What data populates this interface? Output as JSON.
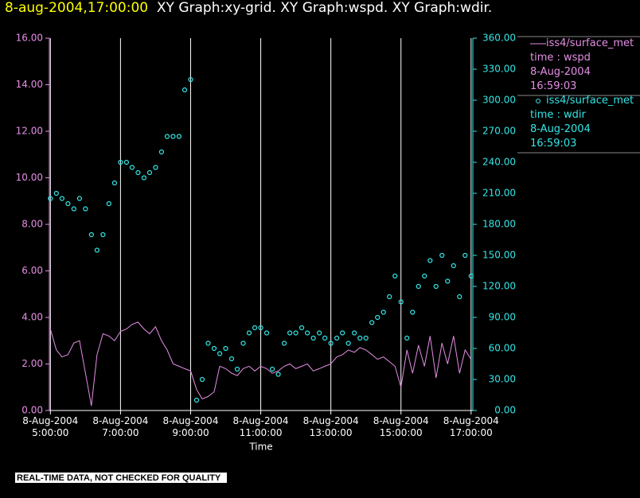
{
  "chart_data": {
    "type": "line-scatter",
    "title_time": "8-aug-2004,17:00:00",
    "title": "XY Graph:xy-grid.  XY Graph:wspd.  XY Graph:wdir.",
    "x_label": "Time",
    "footer": "REAL-TIME DATA, NOT CHECKED FOR QUALITY",
    "x": [
      5,
      5.17,
      5.33,
      5.5,
      5.67,
      5.83,
      6,
      6.17,
      6.33,
      6.5,
      6.67,
      6.83,
      7,
      7.17,
      7.33,
      7.5,
      7.67,
      7.83,
      8,
      8.17,
      8.33,
      8.5,
      8.67,
      8.83,
      9,
      9.17,
      9.33,
      9.5,
      9.67,
      9.83,
      10,
      10.17,
      10.33,
      10.5,
      10.67,
      10.83,
      11,
      11.17,
      11.33,
      11.5,
      11.67,
      11.83,
      12,
      12.17,
      12.33,
      12.5,
      12.67,
      12.83,
      13,
      13.17,
      13.33,
      13.5,
      13.67,
      13.83,
      14,
      14.17,
      14.33,
      14.5,
      14.67,
      14.83,
      15,
      15.17,
      15.33,
      15.5,
      15.67,
      15.83,
      16,
      16.17,
      16.33,
      16.5,
      16.67,
      16.83,
      17
    ],
    "series": [
      {
        "name": "iss4/surface_met",
        "legend_lines": [
          "time : wspd",
          "8-Aug-2004",
          "16:59:03"
        ],
        "color": "#e58ee5",
        "marker": "line",
        "values": [
          3.5,
          2.6,
          2.3,
          2.4,
          2.9,
          3.0,
          1.6,
          0.2,
          2.4,
          3.3,
          3.2,
          3.0,
          3.4,
          3.5,
          3.7,
          3.8,
          3.5,
          3.3,
          3.6,
          3.0,
          2.6,
          2.0,
          1.9,
          1.8,
          1.7,
          0.9,
          0.5,
          0.6,
          0.8,
          1.9,
          1.8,
          1.6,
          1.5,
          1.8,
          1.9,
          1.7,
          1.9,
          1.8,
          1.6,
          1.7,
          1.9,
          2.0,
          1.8,
          1.9,
          2.0,
          1.7,
          1.8,
          1.9,
          2.0,
          2.3,
          2.4,
          2.6,
          2.5,
          2.7,
          2.6,
          2.4,
          2.2,
          2.3,
          2.1,
          1.9,
          1.0,
          2.6,
          1.6,
          2.8,
          1.9,
          3.2,
          1.4,
          2.9,
          2.0,
          3.2,
          1.6,
          2.6,
          2.2
        ]
      },
      {
        "name": "iss4/surface_met",
        "legend_lines": [
          "time : wdir",
          "8-Aug-2004",
          "16:59:03"
        ],
        "color": "#33e6e6",
        "marker": "circle",
        "axis": "y2",
        "values": [
          205,
          210,
          205,
          200,
          195,
          205,
          195,
          170,
          155,
          170,
          200,
          220,
          240,
          240,
          235,
          230,
          225,
          230,
          235,
          250,
          265,
          265,
          265,
          310,
          320,
          10,
          30,
          65,
          60,
          55,
          60,
          50,
          40,
          65,
          75,
          80,
          80,
          75,
          40,
          35,
          65,
          75,
          75,
          80,
          75,
          70,
          75,
          70,
          65,
          70,
          75,
          65,
          75,
          70,
          70,
          85,
          90,
          95,
          110,
          130,
          105,
          70,
          95,
          120,
          130,
          145,
          120,
          150,
          125,
          140,
          110,
          150,
          130
        ]
      }
    ],
    "xlim": [
      4.97,
      17.05
    ],
    "xticks": [
      {
        "value": 5,
        "label": "8-Aug-2004 5:00:00"
      },
      {
        "value": 7,
        "label": "8-Aug-2004 7:00:00"
      },
      {
        "value": 9,
        "label": "8-Aug-2004 9:00:00"
      },
      {
        "value": 11,
        "label": "8-Aug-2004 11:00:00"
      },
      {
        "value": 13,
        "label": "8-Aug-2004 13:00:00"
      },
      {
        "value": 15,
        "label": "8-Aug-2004 15:00:00"
      },
      {
        "value": 17,
        "label": "8-Aug-2004 17:00:00"
      }
    ],
    "ylim": [
      0,
      16
    ],
    "yticks": [
      {
        "value": 0,
        "label": "0.00"
      },
      {
        "value": 2,
        "label": "2.00"
      },
      {
        "value": 4,
        "label": "4.00"
      },
      {
        "value": 6,
        "label": "6.00"
      },
      {
        "value": 8,
        "label": "8.00"
      },
      {
        "value": 10,
        "label": "10.00"
      },
      {
        "value": 12,
        "label": "12.00"
      },
      {
        "value": 14,
        "label": "14.00"
      },
      {
        "value": 16,
        "label": "16.00"
      }
    ],
    "y2lim": [
      0,
      360
    ],
    "y2ticks": [
      {
        "value": 0,
        "label": "0.00"
      },
      {
        "value": 30,
        "label": "30.00"
      },
      {
        "value": 60,
        "label": "60.00"
      },
      {
        "value": 90,
        "label": "90.00"
      },
      {
        "value": 120,
        "label": "120.00"
      },
      {
        "value": 150,
        "label": "150.00"
      },
      {
        "value": 180,
        "label": "180.00"
      },
      {
        "value": 210,
        "label": "210.00"
      },
      {
        "value": 240,
        "label": "240.00"
      },
      {
        "value": 270,
        "label": "270.00"
      },
      {
        "value": 300,
        "label": "300.00"
      },
      {
        "value": 330,
        "label": "330.00"
      },
      {
        "value": 360,
        "label": "360.00"
      }
    ],
    "grid": true,
    "grid_color": "#ffffff",
    "title_time_color": "#ffff00",
    "text_color": "#ffffff"
  }
}
